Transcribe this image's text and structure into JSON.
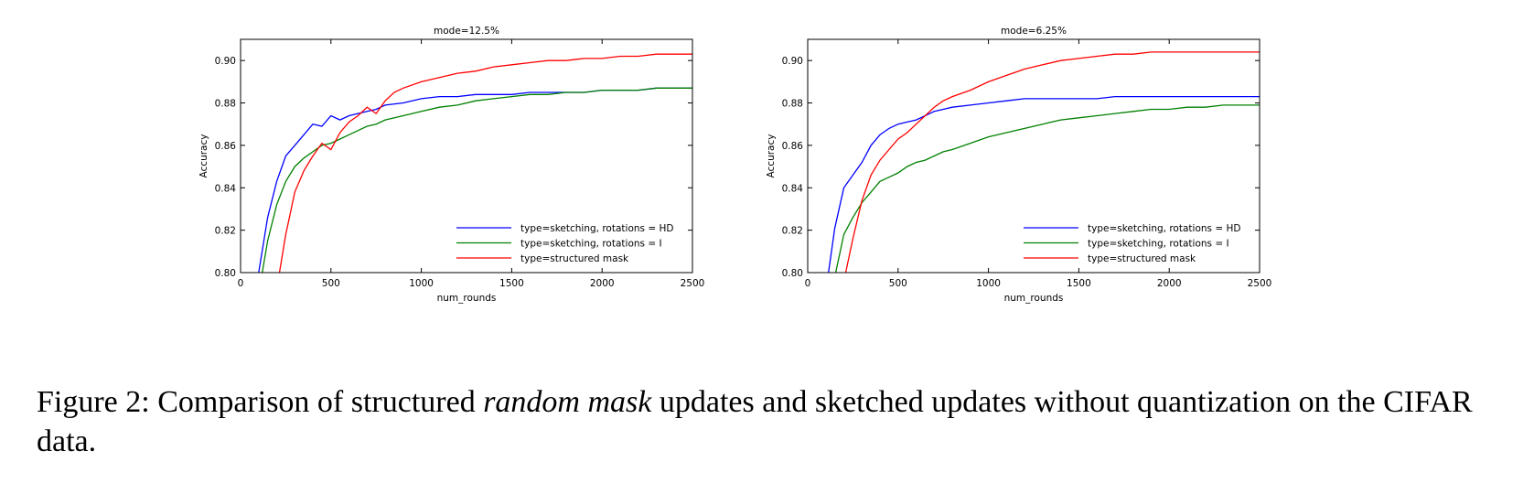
{
  "chart_data": [
    {
      "type": "line",
      "title": "mode=12.5%",
      "xlabel": "num_rounds",
      "ylabel": "Accuracy",
      "xlim": [
        0,
        2500
      ],
      "ylim": [
        0.8,
        0.91
      ],
      "xticks": [
        "0",
        "500",
        "1000",
        "1500",
        "2000",
        "2500"
      ],
      "yticks": [
        "0.80",
        "0.82",
        "0.84",
        "0.86",
        "0.88",
        "0.90"
      ],
      "legend_position": "lower-right",
      "series": [
        {
          "name": "type=sketching, rotations = HD",
          "color": "#0000ff",
          "x": [
            100,
            150,
            200,
            250,
            300,
            350,
            400,
            450,
            500,
            550,
            600,
            650,
            700,
            750,
            800,
            900,
            1000,
            1100,
            1200,
            1300,
            1400,
            1500,
            1600,
            1700,
            1800,
            1900,
            2000,
            2100,
            2200,
            2300,
            2400,
            2500
          ],
          "values": [
            0.8,
            0.826,
            0.843,
            0.855,
            0.86,
            0.865,
            0.87,
            0.869,
            0.874,
            0.872,
            0.874,
            0.875,
            0.876,
            0.877,
            0.879,
            0.88,
            0.882,
            0.883,
            0.883,
            0.884,
            0.884,
            0.884,
            0.885,
            0.885,
            0.885,
            0.885,
            0.886,
            0.886,
            0.886,
            0.887,
            0.887,
            0.887
          ]
        },
        {
          "name": "type=sketching, rotations = I",
          "color": "#008000",
          "x": [
            120,
            150,
            200,
            250,
            300,
            350,
            400,
            450,
            500,
            550,
            600,
            650,
            700,
            750,
            800,
            900,
            1000,
            1100,
            1200,
            1300,
            1400,
            1500,
            1600,
            1700,
            1800,
            1900,
            2000,
            2100,
            2200,
            2300,
            2400,
            2500
          ],
          "values": [
            0.8,
            0.815,
            0.832,
            0.843,
            0.85,
            0.854,
            0.857,
            0.86,
            0.861,
            0.863,
            0.865,
            0.867,
            0.869,
            0.87,
            0.872,
            0.874,
            0.876,
            0.878,
            0.879,
            0.881,
            0.882,
            0.883,
            0.884,
            0.884,
            0.885,
            0.885,
            0.886,
            0.886,
            0.886,
            0.887,
            0.887,
            0.887
          ]
        },
        {
          "name": "type=structured mask",
          "color": "#ff0000",
          "x": [
            215,
            250,
            300,
            350,
            400,
            450,
            500,
            550,
            600,
            650,
            700,
            750,
            800,
            850,
            900,
            1000,
            1100,
            1200,
            1300,
            1400,
            1500,
            1600,
            1700,
            1800,
            1900,
            2000,
            2100,
            2200,
            2300,
            2400,
            2500
          ],
          "values": [
            0.8,
            0.818,
            0.838,
            0.848,
            0.855,
            0.861,
            0.858,
            0.866,
            0.871,
            0.874,
            0.878,
            0.875,
            0.881,
            0.885,
            0.887,
            0.89,
            0.892,
            0.894,
            0.895,
            0.897,
            0.898,
            0.899,
            0.9,
            0.9,
            0.901,
            0.901,
            0.902,
            0.902,
            0.903,
            0.903,
            0.903
          ]
        }
      ]
    },
    {
      "type": "line",
      "title": "mode=6.25%",
      "xlabel": "num_rounds",
      "ylabel": "Accuracy",
      "xlim": [
        0,
        2500
      ],
      "ylim": [
        0.8,
        0.91
      ],
      "xticks": [
        "0",
        "500",
        "1000",
        "1500",
        "2000",
        "2500"
      ],
      "yticks": [
        "0.80",
        "0.82",
        "0.84",
        "0.86",
        "0.88",
        "0.90"
      ],
      "legend_position": "lower-right",
      "series": [
        {
          "name": "type=sketching, rotations = HD",
          "color": "#0000ff",
          "x": [
            115,
            150,
            200,
            250,
            300,
            350,
            400,
            450,
            500,
            550,
            600,
            650,
            700,
            750,
            800,
            900,
            1000,
            1100,
            1200,
            1300,
            1400,
            1500,
            1600,
            1700,
            1800,
            1900,
            2000,
            2100,
            2200,
            2300,
            2400,
            2500
          ],
          "values": [
            0.8,
            0.821,
            0.84,
            0.846,
            0.852,
            0.86,
            0.865,
            0.868,
            0.87,
            0.871,
            0.872,
            0.874,
            0.876,
            0.877,
            0.878,
            0.879,
            0.88,
            0.881,
            0.882,
            0.882,
            0.882,
            0.882,
            0.882,
            0.883,
            0.883,
            0.883,
            0.883,
            0.883,
            0.883,
            0.883,
            0.883,
            0.883
          ]
        },
        {
          "name": "type=sketching, rotations = I",
          "color": "#008000",
          "x": [
            155,
            200,
            250,
            300,
            350,
            400,
            450,
            500,
            550,
            600,
            650,
            700,
            750,
            800,
            900,
            1000,
            1100,
            1200,
            1300,
            1400,
            1500,
            1600,
            1700,
            1800,
            1900,
            2000,
            2100,
            2200,
            2300,
            2400,
            2500
          ],
          "values": [
            0.8,
            0.818,
            0.826,
            0.833,
            0.838,
            0.843,
            0.845,
            0.847,
            0.85,
            0.852,
            0.853,
            0.855,
            0.857,
            0.858,
            0.861,
            0.864,
            0.866,
            0.868,
            0.87,
            0.872,
            0.873,
            0.874,
            0.875,
            0.876,
            0.877,
            0.877,
            0.878,
            0.878,
            0.879,
            0.879,
            0.879
          ]
        },
        {
          "name": "type=structured mask",
          "color": "#ff0000",
          "x": [
            210,
            250,
            300,
            350,
            400,
            450,
            500,
            550,
            600,
            650,
            700,
            750,
            800,
            900,
            1000,
            1100,
            1200,
            1300,
            1400,
            1500,
            1600,
            1700,
            1800,
            1900,
            2000,
            2100,
            2200,
            2300,
            2400,
            2500
          ],
          "values": [
            0.8,
            0.816,
            0.834,
            0.846,
            0.853,
            0.858,
            0.863,
            0.866,
            0.87,
            0.874,
            0.878,
            0.881,
            0.883,
            0.886,
            0.89,
            0.893,
            0.896,
            0.898,
            0.9,
            0.901,
            0.902,
            0.903,
            0.903,
            0.904,
            0.904,
            0.904,
            0.904,
            0.904,
            0.904,
            0.904
          ]
        }
      ]
    }
  ],
  "caption": {
    "prefix": "Figure 2: Comparison of structured ",
    "emphasis": "random mask",
    "suffix": " updates and sketched updates without quantization on the CIFAR data."
  }
}
